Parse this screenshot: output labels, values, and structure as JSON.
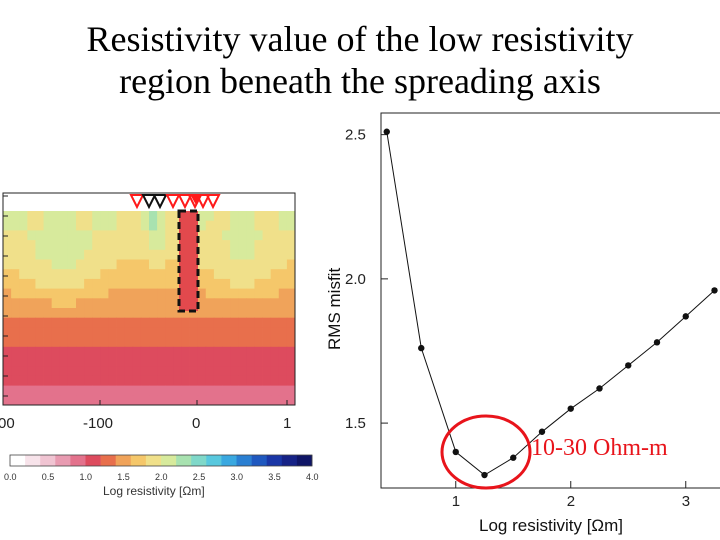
{
  "title": {
    "line1": "Resistivity value of  the low resistivity",
    "line2": "region beneath the spreading axis"
  },
  "model_panel": {
    "x_tick_labels": [
      "00",
      "-100",
      "0",
      "1"
    ],
    "colorbar": {
      "tick_labels": [
        "0.0",
        "0.5",
        "1.0",
        "1.5",
        "2.0",
        "2.5",
        "3.0",
        "3.5",
        "4.0"
      ],
      "label": "Log resistivity [Ωm]",
      "colors": [
        "#ffffff",
        "#f7e3ea",
        "#f0c4d2",
        "#e89bb1",
        "#e3728c",
        "#dd4b5e",
        "#e86f4c",
        "#f0a35a",
        "#f5c76a",
        "#f0e08a",
        "#d7ea9c",
        "#a8e2b0",
        "#7fd8c9",
        "#58c8de",
        "#3aa8e0",
        "#2a7fd2",
        "#1f58bf",
        "#1a36a6",
        "#162286",
        "#0f1566"
      ]
    },
    "station_colors": {
      "red": "#ff1a1a",
      "black": "#111111"
    }
  },
  "annotation": "10-30 Ohm-m",
  "chart_data": {
    "type": "line",
    "xlabel": "Log resistivity [Ωm]",
    "ylabel": "RMS misfit",
    "xlim": [
      0.35,
      3.35
    ],
    "ylim": [
      1.275,
      2.575
    ],
    "x_ticks": [
      1,
      2,
      3
    ],
    "y_ticks": [
      1.5,
      2.0,
      2.5
    ],
    "x_tick_labels": [
      "1",
      "2",
      "3"
    ],
    "y_tick_labels": [
      "1.5",
      "2.0",
      "2.5"
    ],
    "series": [
      {
        "x": [
          0.4,
          0.7,
          1.0,
          1.25,
          1.5,
          1.75,
          2.0,
          2.25,
          2.5,
          2.75,
          3.0,
          3.25
        ],
        "y": [
          2.51,
          1.76,
          1.4,
          1.32,
          1.38,
          1.47,
          1.55,
          1.62,
          1.7,
          1.78,
          1.87,
          1.96
        ]
      }
    ],
    "grid": false
  }
}
